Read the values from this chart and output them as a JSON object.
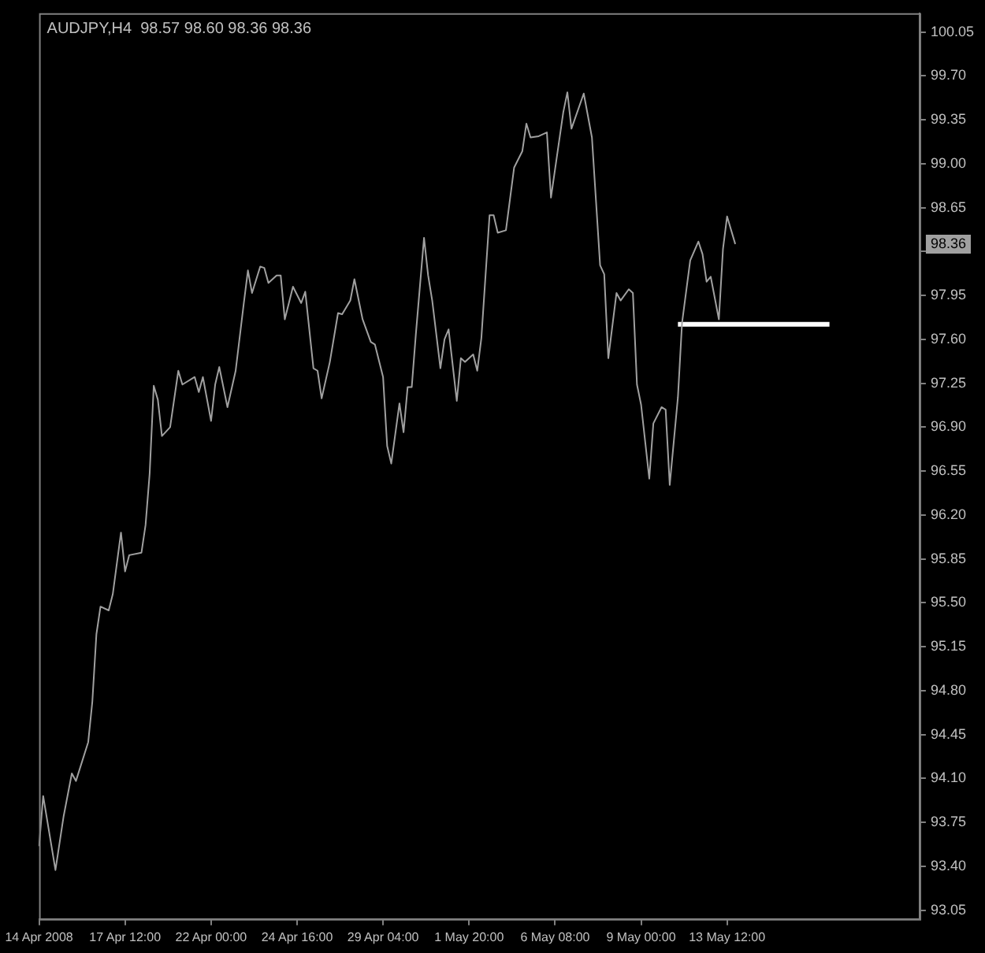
{
  "chart_data": {
    "type": "line",
    "title": "AUDJPY,H4  98.57 98.60 98.36 98.36",
    "grid": false,
    "legend": false,
    "categories": [
      "14 Apr 2008",
      null,
      null,
      null,
      null,
      null,
      null,
      null,
      null,
      null,
      null,
      null,
      null,
      null,
      null,
      null,
      null,
      null,
      null,
      null,
      null,
      "17 Apr 12:00",
      null,
      null,
      null,
      null,
      null,
      null,
      null,
      null,
      null,
      null,
      null,
      null,
      null,
      null,
      null,
      null,
      null,
      null,
      null,
      null,
      "22 Apr 00:00",
      null,
      null,
      null,
      null,
      null,
      null,
      null,
      null,
      null,
      null,
      null,
      null,
      null,
      null,
      null,
      null,
      null,
      null,
      null,
      null,
      "24 Apr 16:00",
      null,
      null,
      null,
      null,
      null,
      null,
      null,
      null,
      null,
      null,
      null,
      null,
      null,
      null,
      null,
      null,
      null,
      null,
      null,
      null,
      "29 Apr 04:00",
      null,
      null,
      null,
      null,
      null,
      null,
      null,
      null,
      null,
      null,
      null,
      null,
      null,
      null,
      null,
      null,
      null,
      null,
      null,
      null,
      "1 May 20:00",
      null,
      null,
      null,
      null,
      null,
      null,
      null,
      null,
      null,
      null,
      null,
      null,
      null,
      null,
      null,
      null,
      null,
      null,
      null,
      null,
      "6 May 08:00",
      null,
      null,
      null,
      null,
      null,
      null,
      null,
      null,
      null,
      null,
      null,
      null,
      null,
      null,
      null,
      null,
      null,
      null,
      null,
      null,
      "9 May 00:00",
      null,
      null,
      null,
      null,
      null,
      null,
      null,
      null,
      null,
      null,
      null,
      null,
      null,
      null,
      null,
      null,
      null,
      null,
      null,
      null,
      "13 May 12:00",
      null,
      null,
      null,
      null,
      null,
      null,
      null,
      null,
      null,
      null,
      null,
      null,
      null,
      null,
      null,
      null,
      null,
      null,
      null,
      null,
      null,
      null,
      null,
      null,
      null,
      null,
      null,
      null,
      null,
      null,
      null,
      null,
      null,
      null,
      null,
      null,
      null,
      null,
      null,
      null,
      null,
      null,
      null,
      null,
      null,
      null,
      null
    ],
    "ylim": [
      92.98,
      100.2
    ],
    "yticks": [
      93.05,
      {
        "value": 93.4,
        "label": "93.40"
      },
      93.75,
      {
        "value": 94.1,
        "label": "94.10"
      },
      94.45,
      {
        "value": 94.8,
        "label": "94.80"
      },
      95.15,
      {
        "value": 95.5,
        "label": "95.50"
      },
      95.85,
      {
        "value": 96.2,
        "label": "96.20"
      },
      96.55,
      {
        "value": 96.9,
        "label": "96.90"
      },
      97.25,
      {
        "value": 97.6,
        "label": "97.60"
      },
      97.95,
      {
        "value": 98.3,
        "label": null
      },
      98.65,
      {
        "value": 99,
        "label": "99.00"
      },
      99.35,
      {
        "value": 99.7,
        "label": "99.70"
      },
      100.05
    ],
    "annotations": [
      "98.36"
    ],
    "series": [
      {
        "color": "#a0a0a0",
        "values": [
          93.56,
          93.96,
          null,
          null,
          93.37,
          null,
          93.8,
          null,
          94.14,
          94.08,
          null,
          null,
          94.39,
          94.71,
          95.25,
          95.47,
          null,
          95.44,
          95.57,
          null,
          96.06,
          95.75,
          95.88,
          null,
          null,
          95.9,
          96.12,
          96.53,
          97.23,
          97.12,
          96.83,
          null,
          96.9,
          null,
          97.35,
          97.24,
          null,
          null,
          97.3,
          97.18,
          97.3,
          null,
          96.95,
          97.24,
          97.38,
          null,
          97.06,
          null,
          97.35,
          null,
          97.89,
          98.15,
          97.97,
          null,
          98.18,
          98.17,
          98.05,
          null,
          98.11,
          98.11,
          97.76,
          null,
          98.02,
          null,
          97.89,
          97.98,
          null,
          97.37,
          97.35,
          97.13,
          null,
          97.42,
          null,
          97.81,
          97.8,
          null,
          97.91,
          98.08,
          null,
          97.76,
          null,
          97.58,
          97.56,
          null,
          97.3,
          96.75,
          96.61,
          null,
          97.09,
          96.86,
          97.22,
          97.22,
          97.64,
          null,
          98.41,
          98.11,
          97.91,
          null,
          97.37,
          97.6,
          97.68,
          null,
          97.11,
          97.45,
          97.42,
          null,
          97.48,
          97.35,
          97.61,
          null,
          98.59,
          98.59,
          98.45,
          null,
          98.47,
          null,
          98.97,
          null,
          99.1,
          99.32,
          99.21,
          null,
          99.22,
          null,
          99.25,
          98.73,
          null,
          null,
          99.41,
          99.57,
          99.28,
          null,
          null,
          99.56,
          null,
          99.21,
          null,
          98.19,
          98.12,
          97.45,
          null,
          97.97,
          97.91,
          null,
          98.0,
          97.97,
          97.24,
          97.08,
          null,
          96.49,
          96.93,
          null,
          97.06,
          97.04,
          96.44,
          null,
          97.14,
          97.73,
          null,
          98.23,
          null,
          98.38,
          98.28,
          98.06,
          98.1,
          null,
          97.76,
          98.32,
          98.58,
          null,
          98.36,
          null,
          null,
          null,
          null,
          null,
          null,
          null,
          null,
          null,
          null,
          null,
          null,
          null,
          null,
          null,
          null,
          null,
          null,
          null,
          null,
          null,
          null,
          null,
          null,
          null,
          null,
          null,
          null,
          null,
          null,
          null,
          null,
          null,
          null,
          null,
          null,
          null,
          null,
          null,
          null,
          null,
          null,
          null,
          null,
          null
        ]
      },
      {
        "color": "#ffffff",
        "values": [
          null,
          null,
          null,
          null,
          null,
          null,
          null,
          null,
          null,
          null,
          null,
          null,
          null,
          null,
          null,
          null,
          null,
          null,
          null,
          null,
          null,
          null,
          null,
          null,
          null,
          null,
          null,
          null,
          null,
          null,
          null,
          null,
          null,
          null,
          null,
          null,
          null,
          null,
          null,
          null,
          null,
          null,
          null,
          null,
          null,
          null,
          null,
          null,
          null,
          null,
          null,
          null,
          null,
          null,
          null,
          null,
          null,
          null,
          null,
          null,
          null,
          null,
          null,
          null,
          null,
          null,
          null,
          null,
          null,
          null,
          null,
          null,
          null,
          null,
          null,
          null,
          null,
          null,
          null,
          null,
          null,
          null,
          null,
          null,
          null,
          null,
          null,
          null,
          null,
          null,
          null,
          null,
          null,
          null,
          null,
          null,
          null,
          null,
          null,
          null,
          null,
          null,
          null,
          null,
          null,
          null,
          null,
          null,
          null,
          null,
          null,
          null,
          null,
          null,
          null,
          null,
          null,
          null,
          null,
          null,
          null,
          null,
          null,
          null,
          null,
          null,
          null,
          null,
          null,
          null,
          null,
          null,
          null,
          null,
          null,
          null,
          null,
          null,
          null,
          null,
          null,
          null,
          null,
          null,
          null,
          null,
          null,
          null,
          null,
          null,
          null,
          null,
          null,
          null,
          null,
          null,
          97.72,
          97.72,
          97.72,
          97.72,
          97.72,
          97.72,
          97.72,
          97.72,
          97.72,
          97.72,
          97.72,
          97.72,
          97.72,
          97.72,
          97.72,
          97.72,
          97.72,
          97.72,
          97.72,
          97.72,
          97.72,
          97.72,
          97.72,
          97.72,
          97.72,
          97.72,
          97.72,
          97.72,
          97.72,
          97.72,
          97.72,
          97.72,
          97.72,
          97.72,
          97.72,
          97.72,
          97.72,
          97.72,
          null,
          null,
          null,
          null,
          null,
          null,
          null,
          null,
          null,
          null,
          null,
          null,
          null,
          null,
          null,
          null,
          null,
          null,
          null,
          null,
          null,
          null
        ]
      }
    ]
  }
}
